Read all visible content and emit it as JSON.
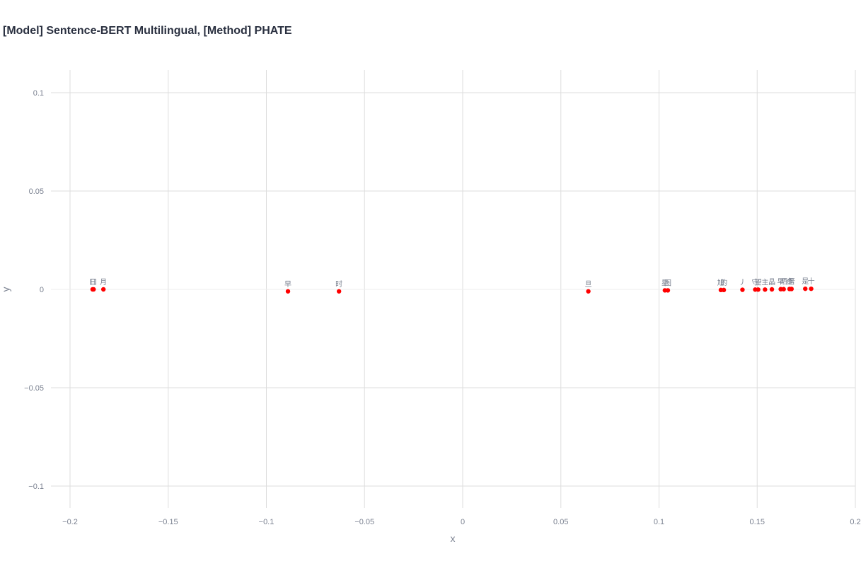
{
  "chart_data": {
    "type": "scatter",
    "title": "[Model] Sentence-BERT Multilingual, [Method] PHATE",
    "xlabel": "x",
    "ylabel": "y",
    "xlim": [
      -0.2,
      0.2
    ],
    "ylim": [
      -0.1,
      0.1
    ],
    "grid": true,
    "x_ticks": [
      -0.2,
      -0.15,
      -0.1,
      -0.05,
      0,
      0.05,
      0.1,
      0.15,
      0.2
    ],
    "x_tick_labels": [
      "−0.2",
      "−0.15",
      "−0.1",
      "−0.05",
      "0",
      "0.05",
      "0.1",
      "0.15",
      "0.2"
    ],
    "y_ticks": [
      0.1,
      0.05,
      0,
      -0.05,
      -0.1
    ],
    "y_tick_labels": [
      "0.1",
      "0.05",
      "0",
      "−0.05",
      "−0.1"
    ],
    "marker_color": "#ff0000",
    "points": [
      {
        "label": "日",
        "x": -0.1885,
        "y": 0.0
      },
      {
        "label": "曰",
        "x": -0.188,
        "y": 0.0
      },
      {
        "label": "月",
        "x": -0.183,
        "y": 0.0
      },
      {
        "label": "早",
        "x": -0.089,
        "y": -0.001
      },
      {
        "label": "时",
        "x": -0.063,
        "y": -0.001
      },
      {
        "label": "旦",
        "x": 0.064,
        "y": -0.001
      },
      {
        "label": "星",
        "x": 0.103,
        "y": -0.0005
      },
      {
        "label": "图",
        "x": 0.1045,
        "y": -0.0005
      },
      {
        "label": "旭",
        "x": 0.1315,
        "y": -0.0003
      },
      {
        "label": "的",
        "x": 0.133,
        "y": -0.0003
      },
      {
        "label": "丿",
        "x": 0.1425,
        "y": -0.0002
      },
      {
        "label": "守",
        "x": 0.149,
        "y": -0.0001
      },
      {
        "label": "望",
        "x": 0.1505,
        "y": -0.0001
      },
      {
        "label": "主",
        "x": 0.154,
        "y": -0.0001
      },
      {
        "label": "晶",
        "x": 0.1575,
        "y": 0.0
      },
      {
        "label": "早",
        "x": 0.162,
        "y": 0.0001
      },
      {
        "label": "晒",
        "x": 0.1635,
        "y": 0.0001
      },
      {
        "label": "查",
        "x": 0.1665,
        "y": 0.0002
      },
      {
        "label": "晋",
        "x": 0.1675,
        "y": 0.0002
      },
      {
        "label": "是",
        "x": 0.1745,
        "y": 0.0003
      },
      {
        "label": "十",
        "x": 0.1775,
        "y": 0.0003
      }
    ]
  }
}
